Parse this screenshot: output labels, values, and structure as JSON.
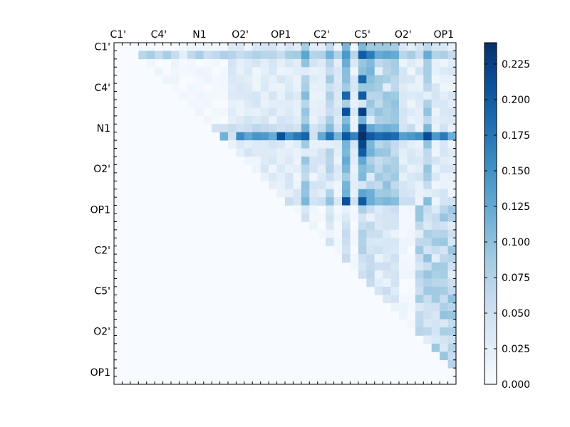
{
  "chart_data": {
    "type": "heatmap",
    "title": "",
    "xlabel": "",
    "ylabel": "",
    "n": 42,
    "x_tick_labels": [
      "C1'",
      "C4'",
      "N1",
      "O2'",
      "OP1",
      "C2'",
      "C5'",
      "O2'",
      "OP1"
    ],
    "y_tick_labels": [
      "C1'",
      "C4'",
      "N1",
      "O2'",
      "OP1",
      "C2'",
      "C5'",
      "O2'",
      "OP1"
    ],
    "colorbar": {
      "min": 0.0,
      "max": 0.24,
      "tick_values": [
        0.0,
        0.025,
        0.05,
        0.075,
        0.1,
        0.125,
        0.15,
        0.175,
        0.2,
        0.225
      ],
      "tick_labels": [
        "0.000",
        "0.025",
        "0.050",
        "0.075",
        "0.100",
        "0.125",
        "0.150",
        "0.175",
        "0.200",
        "0.225"
      ]
    },
    "colormap": {
      "name": "Blues",
      "stops": [
        "#f7fbff",
        "#deebf7",
        "#c6dbef",
        "#9ecae1",
        "#6baed6",
        "#4292c6",
        "#2171b5",
        "#08519c",
        "#08306b"
      ]
    },
    "strong_rows": [
      {
        "row": 1,
        "level": 0.09
      },
      {
        "row": 10,
        "level": 0.07
      },
      {
        "row": 11,
        "level": 0.185
      },
      {
        "row": 19,
        "level": 0.06
      }
    ],
    "strong_cols": [
      {
        "col": 23,
        "level": 0.11
      },
      {
        "col": 26,
        "level": 0.09
      },
      {
        "col": 28,
        "level": 0.13
      },
      {
        "col": 30,
        "level": 0.16
      },
      {
        "col": 31,
        "level": 0.125
      },
      {
        "col": 32,
        "level": 0.1
      },
      {
        "col": 33,
        "level": 0.11
      },
      {
        "col": 34,
        "level": 0.1
      },
      {
        "col": 38,
        "level": 0.1
      }
    ],
    "hot_cells": [
      {
        "row": 1,
        "col": 30,
        "value": 0.2
      },
      {
        "row": 1,
        "col": 31,
        "value": 0.17
      },
      {
        "row": 4,
        "col": 30,
        "value": 0.19
      },
      {
        "row": 6,
        "col": 28,
        "value": 0.19
      },
      {
        "row": 6,
        "col": 30,
        "value": 0.2
      },
      {
        "row": 8,
        "col": 28,
        "value": 0.21
      },
      {
        "row": 8,
        "col": 30,
        "value": 0.225
      },
      {
        "row": 10,
        "col": 30,
        "value": 0.22
      },
      {
        "row": 11,
        "col": 20,
        "value": 0.21
      },
      {
        "row": 11,
        "col": 30,
        "value": 0.24
      },
      {
        "row": 11,
        "col": 38,
        "value": 0.215
      },
      {
        "row": 12,
        "col": 30,
        "value": 0.22
      },
      {
        "row": 13,
        "col": 30,
        "value": 0.2
      },
      {
        "row": 19,
        "col": 28,
        "value": 0.21
      },
      {
        "row": 19,
        "col": 30,
        "value": 0.2
      }
    ]
  }
}
